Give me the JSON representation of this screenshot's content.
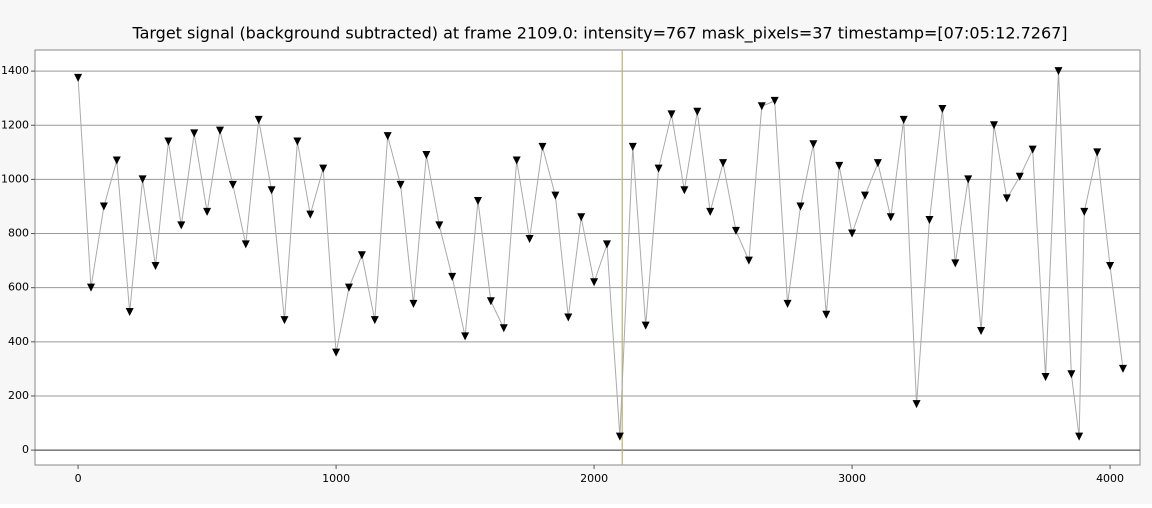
{
  "chart_data": {
    "type": "line",
    "title": "Target signal (background subtracted) at frame 2109.0: intensity=767 mask_pixels=37 timestamp=[07:05:12.7267]",
    "x": [
      0,
      50,
      100,
      150,
      200,
      250,
      300,
      350,
      400,
      450,
      500,
      550,
      600,
      650,
      700,
      750,
      800,
      850,
      900,
      950,
      1000,
      1050,
      1100,
      1150,
      1200,
      1250,
      1300,
      1350,
      1400,
      1450,
      1500,
      1550,
      1600,
      1650,
      1700,
      1750,
      1800,
      1850,
      1900,
      1950,
      2000,
      2050,
      2100,
      2150,
      2200,
      2250,
      2300,
      2350,
      2400,
      2450,
      2500,
      2550,
      2600,
      2650,
      2700,
      2750,
      2800,
      2850,
      2900,
      2950,
      3000,
      3050,
      3100,
      3150,
      3200,
      3250,
      3300,
      3350,
      3400,
      3450,
      3500,
      3550,
      3600,
      3650,
      3700,
      3750,
      3800,
      3850,
      3880,
      3900,
      3950,
      4000,
      4050
    ],
    "values": [
      1375,
      600,
      900,
      1070,
      510,
      1000,
      680,
      1140,
      830,
      1170,
      880,
      1180,
      980,
      760,
      1220,
      960,
      480,
      1140,
      870,
      1040,
      360,
      600,
      720,
      480,
      1160,
      980,
      540,
      1090,
      830,
      640,
      420,
      920,
      550,
      450,
      1070,
      780,
      1120,
      940,
      490,
      860,
      620,
      760,
      50,
      1120,
      460,
      1040,
      1240,
      960,
      1250,
      880,
      1060,
      810,
      700,
      1270,
      1290,
      540,
      900,
      1130,
      500,
      1050,
      800,
      940,
      1060,
      860,
      1220,
      170,
      850,
      1260,
      690,
      1000,
      440,
      1200,
      930,
      1010,
      1110,
      270,
      1400,
      280,
      50,
      880,
      1100,
      680,
      300
    ],
    "color": "#000000",
    "marker_x": 2109,
    "xlim": [
      -167,
      4116
    ],
    "ylim": [
      -55,
      1478
    ],
    "xticks": [
      0,
      1000,
      2000,
      3000,
      4000
    ],
    "yticks": [
      0,
      200,
      400,
      600,
      800,
      1000,
      1200,
      1400
    ],
    "grid": true
  }
}
